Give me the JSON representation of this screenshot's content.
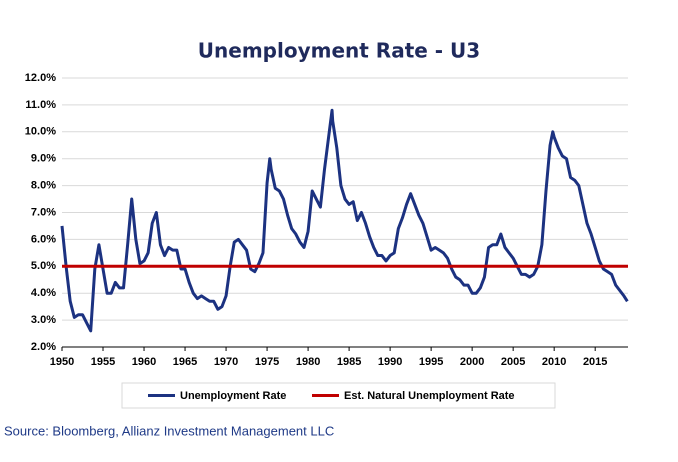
{
  "chart_data": {
    "type": "line",
    "title": "Unemployment Rate - U3",
    "xlim": [
      1950,
      2019
    ],
    "xticks": [
      1950,
      1955,
      1960,
      1965,
      1970,
      1975,
      1980,
      1985,
      1990,
      1995,
      2000,
      2005,
      2010,
      2015
    ],
    "ylim": [
      2,
      12
    ],
    "yticks": [
      {
        "value": 2,
        "label": "2.0%"
      },
      {
        "value": 3,
        "label": "3.0%"
      },
      {
        "value": 4,
        "label": "4.0%"
      },
      {
        "value": 5,
        "label": "5.0%"
      },
      {
        "value": 6,
        "label": "6.0%"
      },
      {
        "value": 7,
        "label": "7.0%"
      },
      {
        "value": 8,
        "label": "8.0%"
      },
      {
        "value": 9,
        "label": "9.0%"
      },
      {
        "value": 10,
        "label": "10.0%"
      },
      {
        "value": 11,
        "label": "11.0%"
      },
      {
        "value": 12,
        "label": "12.0%"
      }
    ],
    "grid": true,
    "legend": "bottom",
    "series": [
      {
        "name": "Unemployment Rate",
        "color": "#1c3281",
        "x": [
          1950,
          1950.5,
          1951,
          1951.5,
          1952,
          1952.5,
          1953,
          1953.5,
          1954,
          1954.5,
          1955,
          1955.5,
          1956,
          1956.5,
          1957,
          1957.5,
          1958,
          1958.5,
          1959,
          1959.5,
          1960,
          1960.5,
          1961,
          1961.5,
          1962,
          1962.5,
          1963,
          1963.5,
          1964,
          1964.5,
          1965,
          1965.5,
          1966,
          1966.5,
          1967,
          1967.5,
          1968,
          1968.5,
          1969,
          1969.5,
          1970,
          1970.5,
          1971,
          1971.5,
          1972,
          1972.5,
          1973,
          1973.5,
          1974,
          1974.5,
          1975,
          1975.33,
          1975.5,
          1976,
          1976.5,
          1977,
          1977.5,
          1978,
          1978.5,
          1979,
          1979.5,
          1980,
          1980.5,
          1981,
          1981.5,
          1982,
          1982.5,
          1982.92,
          1983,
          1983.5,
          1984,
          1984.5,
          1985,
          1985.5,
          1986,
          1986.5,
          1987,
          1987.5,
          1988,
          1988.5,
          1989,
          1989.5,
          1990,
          1990.5,
          1991,
          1991.5,
          1992,
          1992.5,
          1993,
          1993.5,
          1994,
          1994.5,
          1995,
          1995.5,
          1996,
          1996.5,
          1997,
          1997.5,
          1998,
          1998.5,
          1999,
          1999.5,
          2000,
          2000.5,
          2001,
          2001.5,
          2002,
          2002.5,
          2003,
          2003.5,
          2004,
          2004.5,
          2005,
          2005.5,
          2006,
          2006.5,
          2007,
          2007.5,
          2008,
          2008.5,
          2009,
          2009.5,
          2009.83,
          2010,
          2010.5,
          2011,
          2011.5,
          2012,
          2012.5,
          2013,
          2013.5,
          2014,
          2014.5,
          2015,
          2015.5,
          2016,
          2016.5,
          2017,
          2017.5,
          2018,
          2018.5,
          2018.92
        ],
        "values": [
          6.5,
          5.0,
          3.7,
          3.1,
          3.2,
          3.2,
          2.9,
          2.6,
          4.9,
          5.8,
          4.9,
          4.0,
          4.0,
          4.4,
          4.2,
          4.2,
          5.8,
          7.5,
          6.0,
          5.1,
          5.2,
          5.5,
          6.6,
          7.0,
          5.8,
          5.4,
          5.7,
          5.6,
          5.6,
          4.9,
          4.9,
          4.4,
          4.0,
          3.8,
          3.9,
          3.8,
          3.7,
          3.7,
          3.4,
          3.5,
          3.9,
          5.0,
          5.9,
          6.0,
          5.8,
          5.6,
          4.9,
          4.8,
          5.1,
          5.5,
          8.1,
          9.0,
          8.6,
          7.9,
          7.8,
          7.5,
          6.9,
          6.4,
          6.2,
          5.9,
          5.7,
          6.3,
          7.8,
          7.5,
          7.2,
          8.6,
          9.8,
          10.8,
          10.4,
          9.4,
          8.0,
          7.5,
          7.3,
          7.4,
          6.7,
          7.0,
          6.6,
          6.1,
          5.7,
          5.4,
          5.4,
          5.2,
          5.4,
          5.5,
          6.4,
          6.8,
          7.3,
          7.7,
          7.3,
          6.9,
          6.6,
          6.1,
          5.6,
          5.7,
          5.6,
          5.5,
          5.3,
          4.9,
          4.6,
          4.5,
          4.3,
          4.3,
          4.0,
          4.0,
          4.2,
          4.6,
          5.7,
          5.8,
          5.8,
          6.2,
          5.7,
          5.5,
          5.3,
          5.0,
          4.7,
          4.7,
          4.6,
          4.7,
          5.0,
          5.8,
          7.8,
          9.5,
          10.0,
          9.8,
          9.4,
          9.1,
          9.0,
          8.3,
          8.2,
          8.0,
          7.3,
          6.6,
          6.2,
          5.7,
          5.2,
          4.9,
          4.8,
          4.7,
          4.3,
          4.1,
          3.9,
          3.7
        ]
      },
      {
        "name": "Est. Natural Unemployment Rate",
        "color": "#c00000",
        "x": [
          1950,
          2019
        ],
        "values": [
          5,
          5
        ]
      }
    ]
  },
  "source": "Source:  Bloomberg, Allianz Investment Management LLC"
}
